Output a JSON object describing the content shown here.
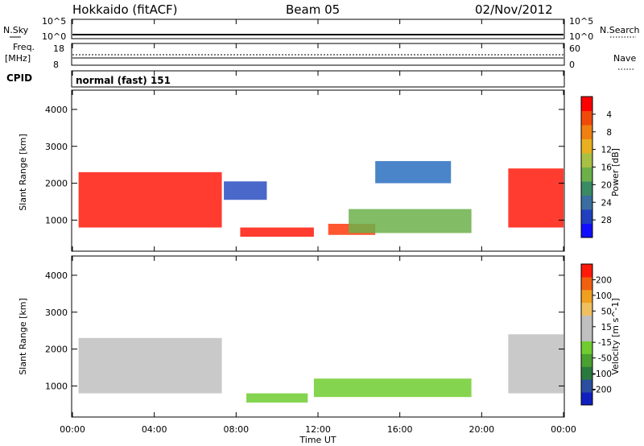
{
  "header": {
    "radar": "Hokkaido (fitACF)",
    "beam": "Beam 05",
    "date": "02/Nov/2012"
  },
  "noise_panel": {
    "left_label": "N.Sky",
    "right_label": "N.Search",
    "ytick_top": "10^5",
    "ytick_bottom": "10^0"
  },
  "freq_panel": {
    "left_label_1": "Freq.",
    "left_label_2": "[MHz]",
    "right_label": "Nave",
    "left_ticks": [
      "18",
      "8"
    ],
    "right_ticks": [
      "60",
      "0"
    ]
  },
  "cpid_panel": {
    "label": "CPID",
    "text": "normal (fast) 151"
  },
  "x_axis": {
    "ticks": [
      "00:00",
      "04:00",
      "08:00",
      "12:00",
      "16:00",
      "20:00",
      "00:00"
    ],
    "label": "Time UT"
  },
  "chart_data": [
    {
      "type": "heatmap",
      "ylabel": "Slant Range [km]",
      "yticks": [
        1000,
        2000,
        3000,
        4000
      ],
      "ylim": [
        180,
        4500
      ],
      "xlim": [
        0,
        24
      ],
      "colorbar": {
        "label": "Power [dB]",
        "ticks": [
          "4",
          "8",
          "12",
          "16",
          "20",
          "24",
          "28"
        ],
        "colors": [
          "#1010ff",
          "#2040c0",
          "#3a6ea0",
          "#3a8a64",
          "#6cb04a",
          "#a8c044",
          "#e8b020",
          "#f08010",
          "#f04a0a",
          "#ff0000"
        ]
      },
      "regions": [
        {
          "t": [
            0.3,
            7.3
          ],
          "r": [
            800,
            2300
          ],
          "color": "#ff1a0a"
        },
        {
          "t": [
            7.4,
            9.5
          ],
          "r": [
            1550,
            2050
          ],
          "color": "#2a4ec0"
        },
        {
          "t": [
            8.2,
            11.8
          ],
          "r": [
            550,
            800
          ],
          "color": "#ff1a0a"
        },
        {
          "t": [
            12.5,
            14.8
          ],
          "r": [
            600,
            900
          ],
          "color": "#ff3a0a"
        },
        {
          "t": [
            13.5,
            19.5
          ],
          "r": [
            650,
            1300
          ],
          "color": "#6cb04a"
        },
        {
          "t": [
            14.8,
            18.5
          ],
          "r": [
            2000,
            2600
          ],
          "color": "#2a6ec0"
        },
        {
          "t": [
            21.3,
            24
          ],
          "r": [
            800,
            2400
          ],
          "color": "#ff1a0a"
        }
      ]
    },
    {
      "type": "heatmap",
      "ylabel": "Slant Range [km]",
      "yticks": [
        1000,
        2000,
        3000,
        4000
      ],
      "ylim": [
        180,
        4500
      ],
      "xlim": [
        0,
        24
      ],
      "colorbar": {
        "label": "Velocity [m s^-1]",
        "ticks": [
          "200",
          "100",
          "50",
          "15",
          "-15",
          "-50",
          "-100",
          "-200"
        ],
        "colors": [
          "#1020c0",
          "#2a4ea0",
          "#2a7a40",
          "#4aa030",
          "#70cc30",
          "#c0c0c0",
          "#c0c0c0",
          "#f0c060",
          "#f0a020",
          "#f06010",
          "#ff1a0a"
        ]
      },
      "regions": [
        {
          "t": [
            0.3,
            7.3
          ],
          "r": [
            800,
            2300
          ],
          "color": "#c0c0c0"
        },
        {
          "t": [
            8.5,
            11.5
          ],
          "r": [
            550,
            800
          ],
          "color": "#70cc30"
        },
        {
          "t": [
            11.8,
            19.5
          ],
          "r": [
            700,
            1200
          ],
          "color": "#70cc30"
        },
        {
          "t": [
            21.3,
            24
          ],
          "r": [
            800,
            2400
          ],
          "color": "#c0c0c0"
        }
      ]
    }
  ]
}
